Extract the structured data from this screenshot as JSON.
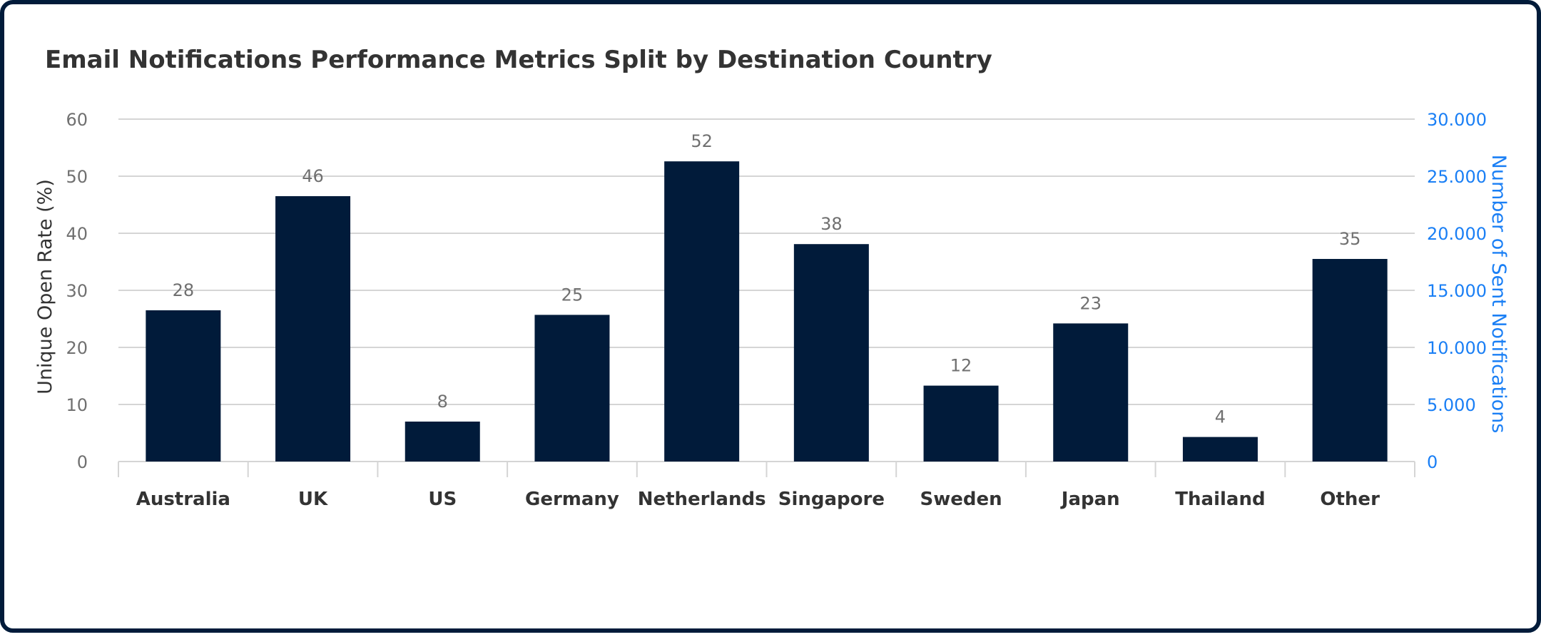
{
  "chart_data": {
    "type": "bar",
    "title": "Email Notifications Performance Metrics Split by Destination Country",
    "categories": [
      "Australia",
      "UK",
      "US",
      "Germany",
      "Netherlands",
      "Singapore",
      "Sweden",
      "Japan",
      "Thailand",
      "Other"
    ],
    "series": [
      {
        "name": "Unique Open Rate (%)",
        "axis": "left",
        "values": [
          28,
          46,
          8,
          25,
          52,
          38,
          12,
          23,
          4,
          35
        ],
        "bar_heights": [
          26.5,
          46.5,
          7,
          25.7,
          52.6,
          38.1,
          13.3,
          24.2,
          4.3,
          35.5
        ]
      }
    ],
    "ylabel_left": "Unique Open Rate (%)",
    "ylim_left": [
      0,
      60
    ],
    "yticks_left": [
      "0",
      "10",
      "20",
      "30",
      "40",
      "50",
      "60"
    ],
    "ylabel_right": "Number of Sent Notifications",
    "ylim_right": [
      0,
      30000
    ],
    "yticks_right": [
      "0",
      "5.000",
      "10.000",
      "15.000",
      "20.000",
      "25.000",
      "30.000"
    ],
    "grid": true,
    "colors": {
      "bar": "#011b3a",
      "right_axis": "#1a7ff5",
      "grid": "#d5d5d5",
      "tick_text": "#707070",
      "title_text": "#333333"
    }
  }
}
